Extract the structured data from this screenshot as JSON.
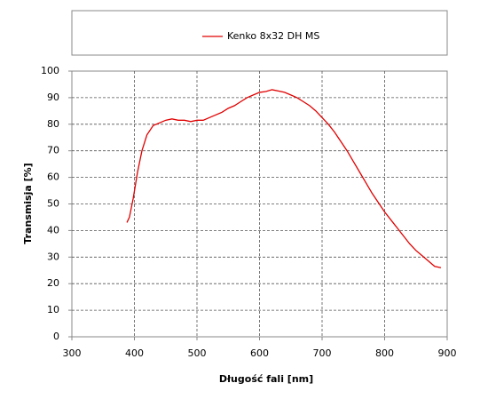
{
  "chart_data": {
    "type": "line",
    "xlabel": "Długość fali [nm]",
    "ylabel": "Transmisja [%]",
    "xlim": [
      300,
      900
    ],
    "xticks": [
      300,
      400,
      500,
      600,
      700,
      800,
      900
    ],
    "ylim": [
      0,
      100
    ],
    "yticks": [
      0,
      10,
      20,
      30,
      40,
      50,
      60,
      70,
      80,
      90,
      100
    ],
    "grid": true,
    "legend": "top",
    "series": [
      {
        "name": "Kenko 8x32 DH MS",
        "color": "#e00000",
        "x": [
          388,
          392,
          398,
          405,
          412,
          420,
          430,
          440,
          450,
          460,
          470,
          480,
          490,
          500,
          510,
          520,
          530,
          540,
          550,
          560,
          570,
          580,
          590,
          600,
          610,
          620,
          630,
          640,
          650,
          660,
          670,
          680,
          690,
          700,
          710,
          720,
          730,
          740,
          750,
          760,
          770,
          780,
          790,
          800,
          810,
          820,
          830,
          840,
          850,
          860,
          870,
          880,
          890
        ],
        "values": [
          43,
          45,
          52,
          62,
          70,
          76,
          79.5,
          80.5,
          81.5,
          82,
          81.5,
          81.5,
          81,
          81.5,
          81.5,
          82.5,
          83.5,
          84.5,
          86,
          87,
          88.5,
          90,
          91,
          92,
          92.3,
          93,
          92.5,
          92,
          91,
          90,
          88.5,
          87,
          85,
          82.5,
          80,
          77,
          73.5,
          70,
          66,
          62,
          58,
          54,
          50.5,
          47,
          44,
          41,
          38,
          35,
          32.5,
          30.5,
          28.5,
          26.5,
          26
        ]
      }
    ]
  }
}
